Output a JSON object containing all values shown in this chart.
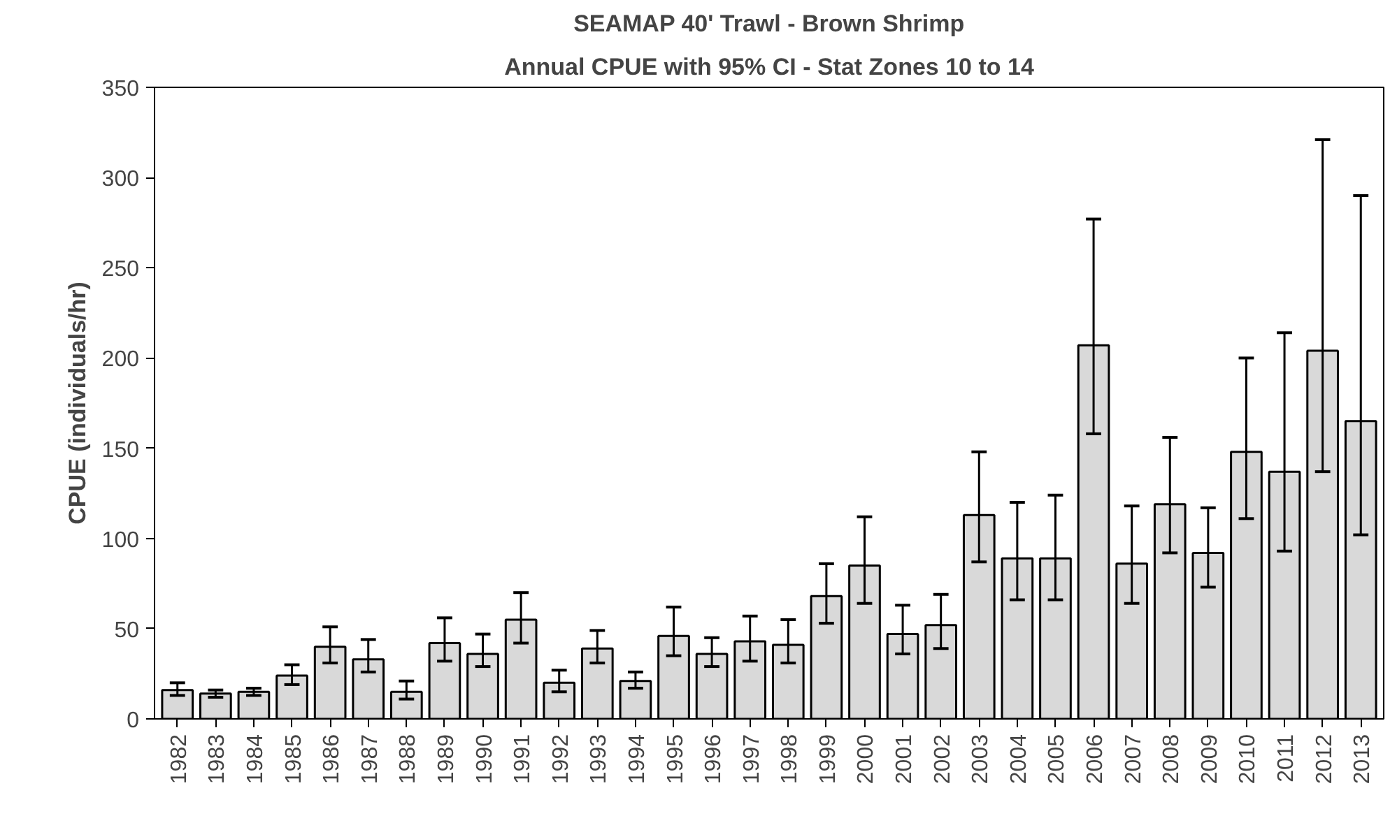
{
  "chart_data": {
    "type": "bar",
    "title": "SEAMAP 40' Trawl - Brown Shrimp",
    "subtitle": "Annual CPUE with 95% CI - Stat Zones 10 to 14",
    "ylabel": "CPUE (individuals/hr)",
    "categories": [
      "1982",
      "1983",
      "1984",
      "1985",
      "1986",
      "1987",
      "1988",
      "1989",
      "1990",
      "1991",
      "1992",
      "1993",
      "1994",
      "1995",
      "1996",
      "1997",
      "1998",
      "1999",
      "2000",
      "2001",
      "2002",
      "2003",
      "2004",
      "2005",
      "2006",
      "2007",
      "2008",
      "2009",
      "2010",
      "2011",
      "2012",
      "2013"
    ],
    "series": [
      {
        "color": "#d9d9d9",
        "values": [
          16,
          14,
          15,
          24,
          40,
          33,
          15,
          42,
          36,
          55,
          20,
          39,
          21,
          46,
          36,
          43,
          41,
          68,
          85,
          47,
          52,
          113,
          89,
          89,
          207,
          86,
          119,
          92,
          148,
          137,
          204,
          165
        ],
        "errors": [
          [
            13,
            20
          ],
          [
            12,
            16
          ],
          [
            13,
            17
          ],
          [
            19,
            30
          ],
          [
            31,
            51
          ],
          [
            26,
            44
          ],
          [
            11,
            21
          ],
          [
            32,
            56
          ],
          [
            29,
            47
          ],
          [
            42,
            70
          ],
          [
            15,
            27
          ],
          [
            31,
            49
          ],
          [
            17,
            26
          ],
          [
            35,
            62
          ],
          [
            29,
            45
          ],
          [
            32,
            57
          ],
          [
            31,
            55
          ],
          [
            53,
            86
          ],
          [
            64,
            112
          ],
          [
            36,
            63
          ],
          [
            39,
            69
          ],
          [
            87,
            148
          ],
          [
            66,
            120
          ],
          [
            66,
            124
          ],
          [
            158,
            277
          ],
          [
            64,
            118
          ],
          [
            92,
            156
          ],
          [
            73,
            117
          ],
          [
            111,
            200
          ],
          [
            93,
            214
          ],
          [
            137,
            321
          ],
          [
            102,
            290
          ]
        ]
      }
    ],
    "ylim": [
      0,
      350
    ],
    "yticks": [
      0,
      50,
      100,
      150,
      200,
      250,
      300,
      350
    ],
    "grid": false
  }
}
